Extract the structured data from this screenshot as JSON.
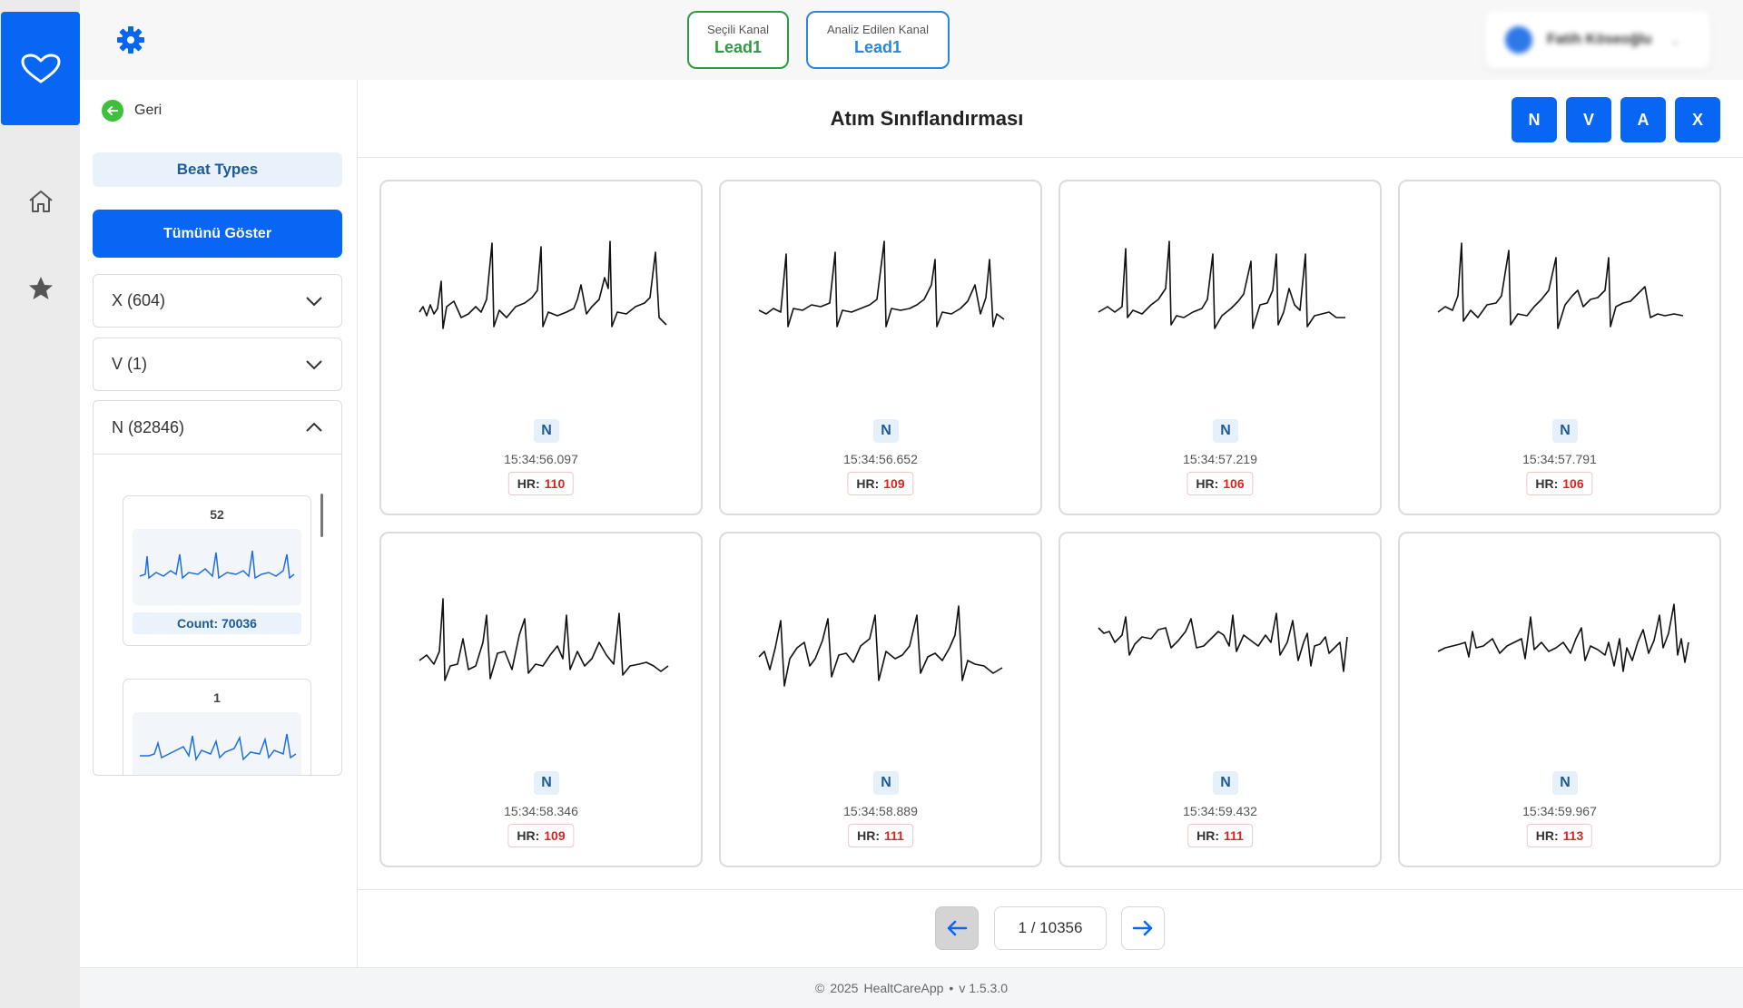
{
  "topbar": {
    "selected_channel": {
      "label": "Seçili Kanal",
      "value": "Lead1"
    },
    "analyzed_channel": {
      "label": "Analiz Edilen Kanal",
      "value": "Lead1"
    },
    "user": {
      "name": "Fatih Köseoğlu"
    }
  },
  "sidebar": {
    "back_label": "Geri",
    "beat_types_title": "Beat Types",
    "show_all_label": "Tümünü Göster",
    "groups": [
      {
        "label": "X (604)",
        "expanded": false
      },
      {
        "label": "V (1)",
        "expanded": false
      },
      {
        "label": "N (82846)",
        "expanded": true
      }
    ],
    "templates": [
      {
        "number": "52",
        "count_label": "Count: 70036"
      },
      {
        "number": "1",
        "count_label": ""
      }
    ]
  },
  "main": {
    "title": "Atım Sınıflandırması",
    "classify_buttons": [
      "N",
      "V",
      "A",
      "X"
    ],
    "hr_label": "HR:",
    "beats": [
      {
        "type": "N",
        "time": "15:34:56.097",
        "hr": "110"
      },
      {
        "type": "N",
        "time": "15:34:56.652",
        "hr": "109"
      },
      {
        "type": "N",
        "time": "15:34:57.219",
        "hr": "106"
      },
      {
        "type": "N",
        "time": "15:34:57.791",
        "hr": "106"
      },
      {
        "type": "N",
        "time": "15:34:58.346",
        "hr": "109"
      },
      {
        "type": "N",
        "time": "15:34:58.889",
        "hr": "111"
      },
      {
        "type": "N",
        "time": "15:34:59.432",
        "hr": "111"
      },
      {
        "type": "N",
        "time": "15:34:59.967",
        "hr": "113"
      }
    ],
    "pagination": {
      "text": "1 / 10356"
    }
  },
  "footer": {
    "copyright": "©",
    "year": "2025",
    "app": "HealtCareApp",
    "bullet": "•",
    "version": "v 1.5.3.0"
  },
  "colors": {
    "primary": "#0866f5",
    "selected_green": "#2f9a44",
    "analyzed_blue": "#2a86e0",
    "hr_red": "#dd2222",
    "waveform": "#111111",
    "template_waveform": "#1f6fe0"
  },
  "icons": [
    "heart-icon",
    "gear-icon",
    "home-icon",
    "star-icon",
    "arrow-left-icon",
    "chevron-down-icon",
    "chevron-up-icon",
    "arrow-right-icon",
    "avatar-icon"
  ]
}
